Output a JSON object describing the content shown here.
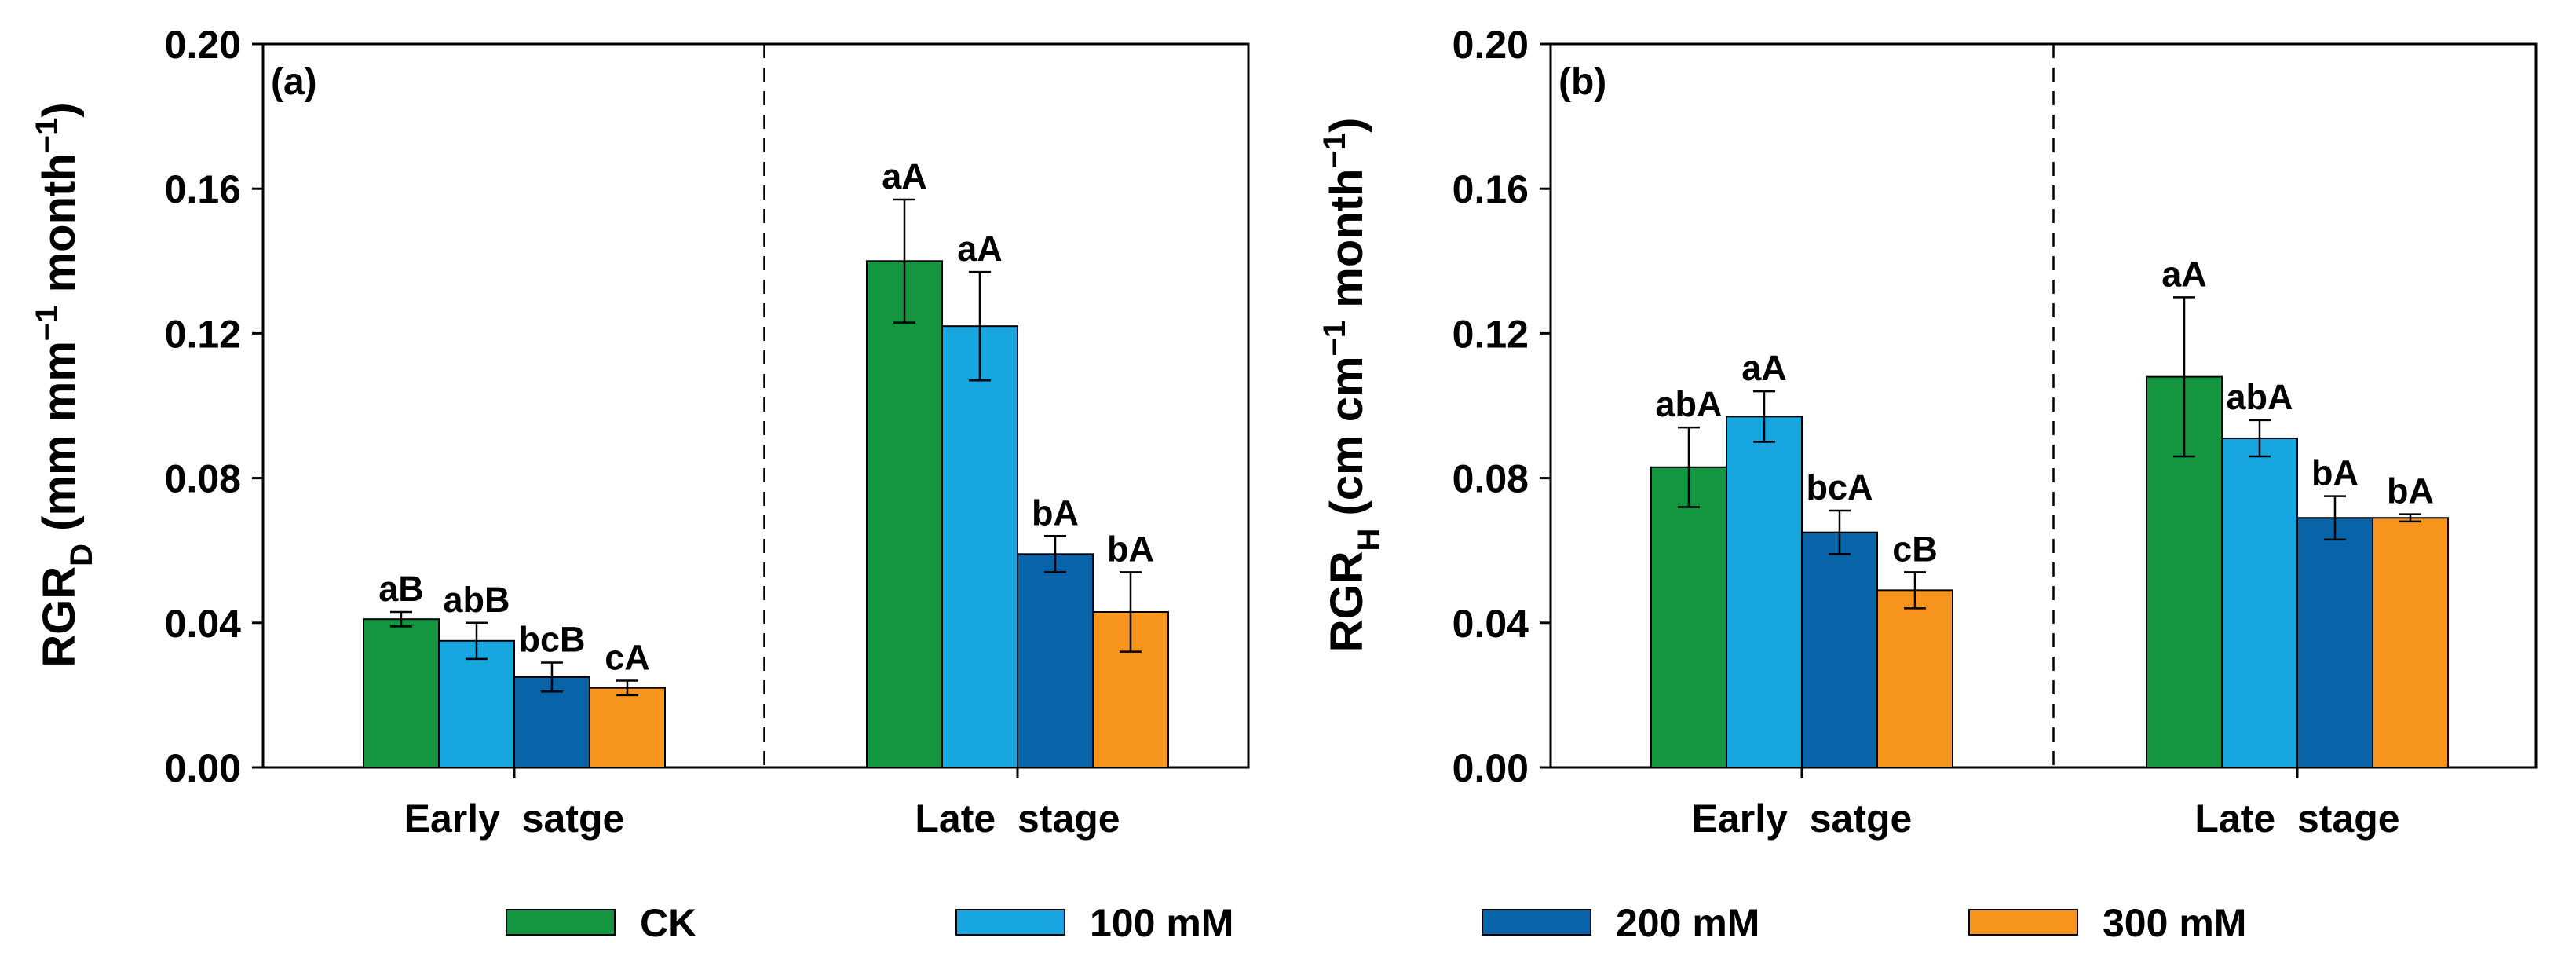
{
  "colors": {
    "CK": "#12963f",
    "100 mM": "#18a6e0",
    "200 mM": "#0963a8",
    "300 mM": "#f7941d"
  },
  "legend": [
    "CK",
    "100 mM",
    "200 mM",
    "300 mM"
  ],
  "chart_data": [
    {
      "type": "bar",
      "panel_label": "(a)",
      "ylabel_main": "RGR",
      "ylabel_sub": "D",
      "ylabel_unit": " (mm mm",
      "ylabel_unit2": " month",
      "ylabel_sup": "−1",
      "ylabel_close": ")",
      "ylim": [
        0,
        0.2
      ],
      "yticks": [
        "0.00",
        "0.04",
        "0.08",
        "0.12",
        "0.16",
        "0.20"
      ],
      "ytick_values": [
        0,
        0.04,
        0.08,
        0.12,
        0.16,
        0.2
      ],
      "categories": [
        "Early  satge",
        "Late  stage"
      ],
      "series": [
        {
          "name": "CK",
          "values": [
            0.041,
            0.14
          ],
          "errors": [
            0.002,
            0.017
          ],
          "labels": [
            "aB",
            "aA"
          ]
        },
        {
          "name": "100 mM",
          "values": [
            0.035,
            0.122
          ],
          "errors": [
            0.005,
            0.015
          ],
          "labels": [
            "abB",
            "aA"
          ]
        },
        {
          "name": "200 mM",
          "values": [
            0.025,
            0.059
          ],
          "errors": [
            0.004,
            0.005
          ],
          "labels": [
            "bcB",
            "bA"
          ]
        },
        {
          "name": "300 mM",
          "values": [
            0.022,
            0.043
          ],
          "errors": [
            0.002,
            0.011
          ],
          "labels": [
            "cA",
            "bA"
          ]
        }
      ]
    },
    {
      "type": "bar",
      "panel_label": "(b)",
      "ylabel_main": "RGR",
      "ylabel_sub": "H",
      "ylabel_unit": " (cm cm",
      "ylabel_unit2": " month",
      "ylabel_sup": "−1",
      "ylabel_close": ")",
      "ylim": [
        0,
        0.2
      ],
      "yticks": [
        "0.00",
        "0.04",
        "0.08",
        "0.12",
        "0.16",
        "0.20"
      ],
      "ytick_values": [
        0,
        0.04,
        0.08,
        0.12,
        0.16,
        0.2
      ],
      "categories": [
        "Early  satge",
        "Late  stage"
      ],
      "series": [
        {
          "name": "CK",
          "values": [
            0.083,
            0.108
          ],
          "errors": [
            0.011,
            0.022
          ],
          "labels": [
            "abA",
            "aA"
          ]
        },
        {
          "name": "100 mM",
          "values": [
            0.097,
            0.091
          ],
          "errors": [
            0.007,
            0.005
          ],
          "labels": [
            "aA",
            "abA"
          ]
        },
        {
          "name": "200 mM",
          "values": [
            0.065,
            0.069
          ],
          "errors": [
            0.006,
            0.006
          ],
          "labels": [
            "bcA",
            "bA"
          ]
        },
        {
          "name": "300 mM",
          "values": [
            0.049,
            0.069
          ],
          "errors": [
            0.005,
            0.001
          ],
          "labels": [
            "cB",
            "bA"
          ]
        }
      ]
    }
  ]
}
